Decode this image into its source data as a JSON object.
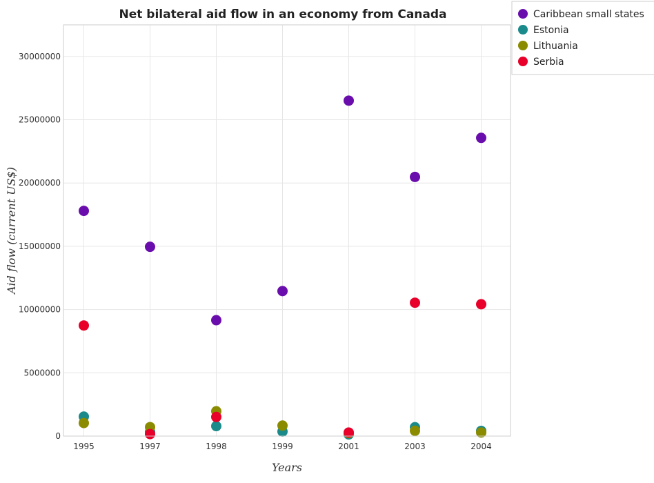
{
  "chart_data": {
    "type": "scatter",
    "title": "Net bilateral aid flow in an economy from Canada",
    "xlabel": "Years",
    "ylabel": "Aid flow (current US$)",
    "categories": [
      "1995",
      "1997",
      "1998",
      "1999",
      "2001",
      "2003",
      "2004"
    ],
    "ylim": [
      0,
      32500000
    ],
    "yticks": [
      0,
      5000000,
      10000000,
      15000000,
      20000000,
      25000000,
      30000000
    ],
    "ytick_labels": [
      "0",
      "5000000",
      "10000000",
      "15000000",
      "20000000",
      "25000000",
      "30000000"
    ],
    "grid": true,
    "legend_position": "top-right",
    "series": [
      {
        "name": "Caribbean small states",
        "color": "#6a0dad",
        "values": [
          17800000,
          14960000,
          9160000,
          11460000,
          26510000,
          20480000,
          23570000
        ]
      },
      {
        "name": "Estonia",
        "color": "#1a8a8a",
        "values": [
          1540000,
          340000,
          790000,
          360000,
          130000,
          700000,
          410000
        ]
      },
      {
        "name": "Lithuania",
        "color": "#8b8b00",
        "values": [
          1030000,
          710000,
          1960000,
          830000,
          230000,
          420000,
          280000
        ]
      },
      {
        "name": "Serbia",
        "color": "#e8002a",
        "values": [
          8740000,
          160000,
          1510000,
          null,
          280000,
          10540000,
          10420000
        ]
      }
    ]
  }
}
